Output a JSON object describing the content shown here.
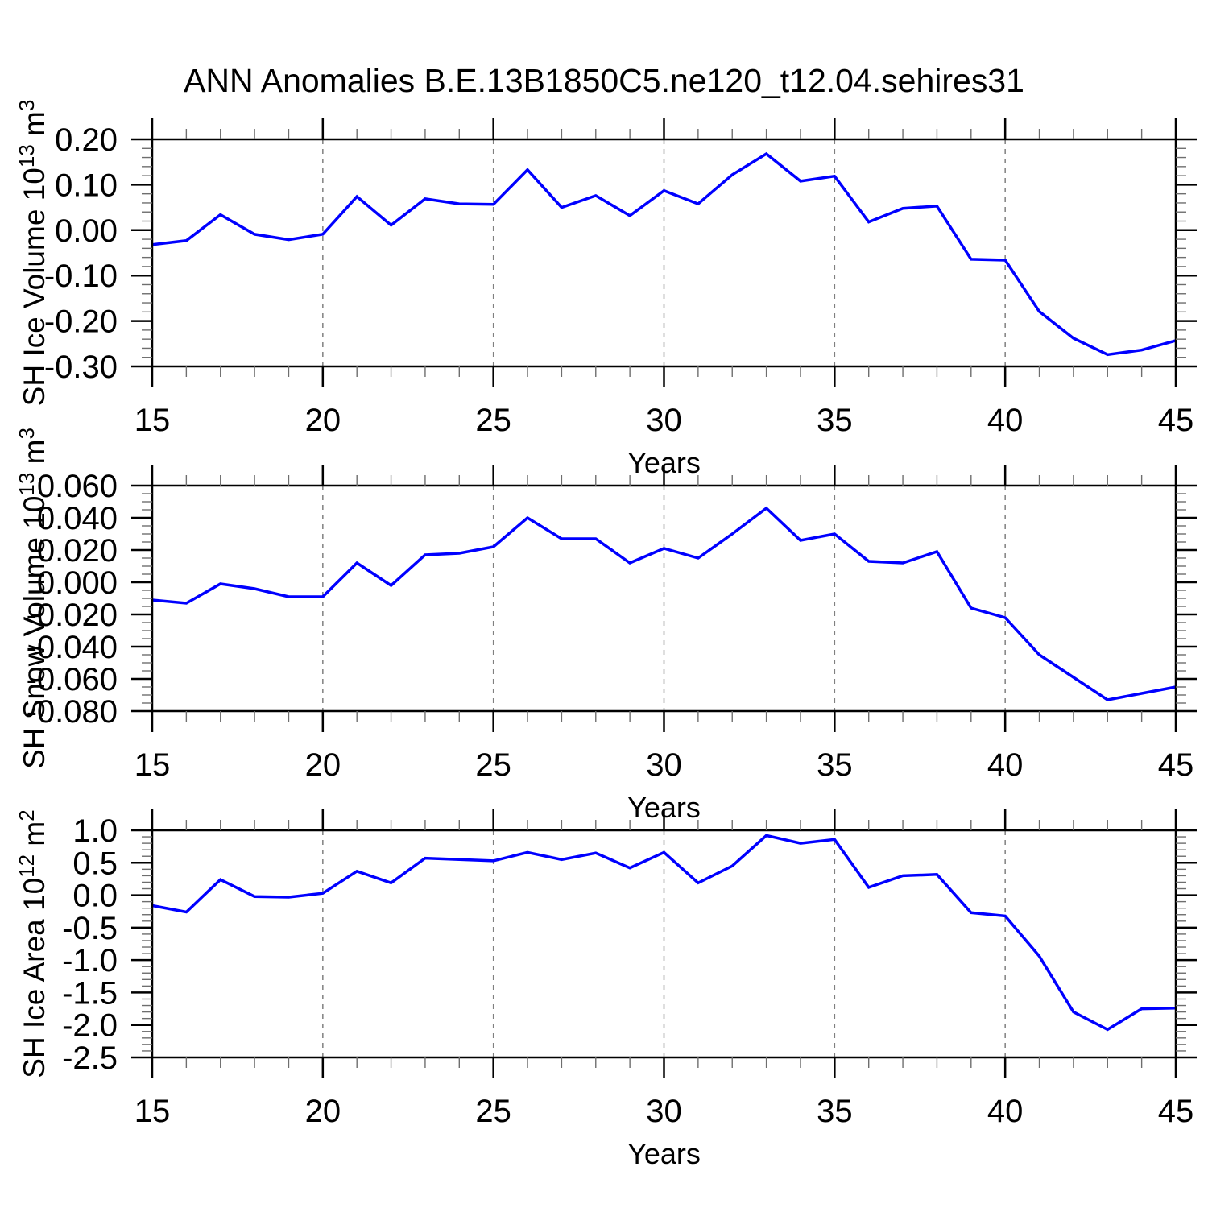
{
  "title": "ANN Anomalies B.E.13B1850C5.ne120_t12.04.sehires31",
  "colors": {
    "line": "#0000ff",
    "axis": "#000000",
    "grid": "#808080",
    "minor_tick": "#6e6e6e",
    "background": "#ffffff",
    "text": "#000000"
  },
  "x_axis": {
    "label": "Years",
    "range": [
      15,
      45
    ],
    "major_ticks": [
      15,
      20,
      25,
      30,
      35,
      40,
      45
    ],
    "minor_step": 1,
    "grid_lines": [
      20,
      25,
      30,
      35,
      40
    ]
  },
  "chart_data": [
    {
      "type": "line",
      "name": "sh-ice-volume",
      "xlabel": "Years",
      "ylabel": "SH Ice Volume 10^13 m^3",
      "ylabel_rich": [
        {
          "text": "SH Ice Volume 10"
        },
        {
          "text": "13",
          "sup": true
        },
        {
          "text": " m"
        },
        {
          "text": "3",
          "sup": true
        }
      ],
      "ylim": [
        -0.3,
        0.2
      ],
      "yticks": [
        {
          "v": 0.2,
          "label": "0.20"
        },
        {
          "v": 0.1,
          "label": "0.10"
        },
        {
          "v": 0.0,
          "label": "0.00"
        },
        {
          "v": -0.1,
          "label": "-0.10"
        },
        {
          "v": -0.2,
          "label": "-0.20"
        },
        {
          "v": -0.3,
          "label": "-0.30"
        }
      ],
      "y_minor_step": 0.02,
      "grid": "vertical dashed",
      "x": [
        15,
        16,
        17,
        18,
        19,
        20,
        21,
        22,
        23,
        24,
        25,
        26,
        27,
        28,
        29,
        30,
        31,
        32,
        33,
        34,
        35,
        36,
        37,
        38,
        39,
        40,
        41,
        42,
        43,
        44,
        45
      ],
      "series": [
        {
          "name": "SH Ice Volume anomaly",
          "color": "#0000ff",
          "values": [
            -0.032,
            -0.023,
            0.034,
            -0.009,
            -0.021,
            -0.009,
            0.074,
            0.011,
            0.069,
            0.058,
            0.057,
            0.133,
            0.05,
            0.076,
            0.032,
            0.087,
            0.058,
            0.122,
            0.168,
            0.108,
            0.119,
            0.018,
            0.048,
            0.053,
            -0.064,
            -0.066,
            -0.179,
            -0.238,
            -0.274,
            -0.264,
            -0.243
          ]
        }
      ]
    },
    {
      "type": "line",
      "name": "sh-snow-volume",
      "xlabel": "Years",
      "ylabel": "SH Snow Volume 10^13 m^3",
      "ylabel_rich": [
        {
          "text": "SH Snow Volume 10"
        },
        {
          "text": "13",
          "sup": true
        },
        {
          "text": " m"
        },
        {
          "text": "3",
          "sup": true
        }
      ],
      "ylim": [
        -0.08,
        0.06
      ],
      "yticks": [
        {
          "v": 0.06,
          "label": "0.060"
        },
        {
          "v": 0.04,
          "label": "0.040"
        },
        {
          "v": 0.02,
          "label": "0.020"
        },
        {
          "v": 0.0,
          "label": "0.000"
        },
        {
          "v": -0.02,
          "label": "-0.020"
        },
        {
          "v": -0.04,
          "label": "-0.040"
        },
        {
          "v": -0.06,
          "label": "-0.060"
        },
        {
          "v": -0.08,
          "label": "-0.080"
        }
      ],
      "y_minor_step": 0.005,
      "grid": "vertical dashed",
      "x": [
        15,
        16,
        17,
        18,
        19,
        20,
        21,
        22,
        23,
        24,
        25,
        26,
        27,
        28,
        29,
        30,
        31,
        32,
        33,
        34,
        35,
        36,
        37,
        38,
        39,
        40,
        41,
        42,
        43,
        44,
        45
      ],
      "series": [
        {
          "name": "SH Snow Volume anomaly",
          "color": "#0000ff",
          "values": [
            -0.011,
            -0.013,
            -0.001,
            -0.004,
            -0.009,
            -0.009,
            0.012,
            -0.002,
            0.017,
            0.018,
            0.022,
            0.04,
            0.027,
            0.027,
            0.012,
            0.021,
            0.015,
            0.03,
            0.046,
            0.026,
            0.03,
            0.013,
            0.012,
            0.019,
            -0.016,
            -0.022,
            -0.045,
            -0.059,
            -0.073,
            -0.069,
            -0.065
          ]
        }
      ]
    },
    {
      "type": "line",
      "name": "sh-ice-area",
      "xlabel": "Years",
      "ylabel": "SH Ice Area 10^12 m^2",
      "ylabel_rich": [
        {
          "text": "SH Ice Area 10"
        },
        {
          "text": "12",
          "sup": true
        },
        {
          "text": " m"
        },
        {
          "text": "2",
          "sup": true
        }
      ],
      "ylim": [
        -2.5,
        1.0
      ],
      "yticks": [
        {
          "v": 1.0,
          "label": "1.0"
        },
        {
          "v": 0.5,
          "label": "0.5"
        },
        {
          "v": 0.0,
          "label": "0.0"
        },
        {
          "v": -0.5,
          "label": "-0.5"
        },
        {
          "v": -1.0,
          "label": "-1.0"
        },
        {
          "v": -1.5,
          "label": "-1.5"
        },
        {
          "v": -2.0,
          "label": "-2.0"
        },
        {
          "v": -2.5,
          "label": "-2.5"
        }
      ],
      "y_minor_step": 0.1,
      "grid": "vertical dashed",
      "x": [
        15,
        16,
        17,
        18,
        19,
        20,
        21,
        22,
        23,
        24,
        25,
        26,
        27,
        28,
        29,
        30,
        31,
        32,
        33,
        34,
        35,
        36,
        37,
        38,
        39,
        40,
        41,
        42,
        43,
        44,
        45
      ],
      "series": [
        {
          "name": "SH Ice Area anomaly",
          "color": "#0000ff",
          "values": [
            -0.16,
            -0.26,
            0.24,
            -0.02,
            -0.03,
            0.03,
            0.37,
            0.19,
            0.57,
            0.55,
            0.53,
            0.66,
            0.55,
            0.65,
            0.42,
            0.66,
            0.19,
            0.45,
            0.92,
            0.8,
            0.86,
            0.12,
            0.3,
            0.32,
            -0.27,
            -0.32,
            -0.94,
            -1.8,
            -2.07,
            -1.75,
            -1.74
          ]
        }
      ]
    }
  ]
}
